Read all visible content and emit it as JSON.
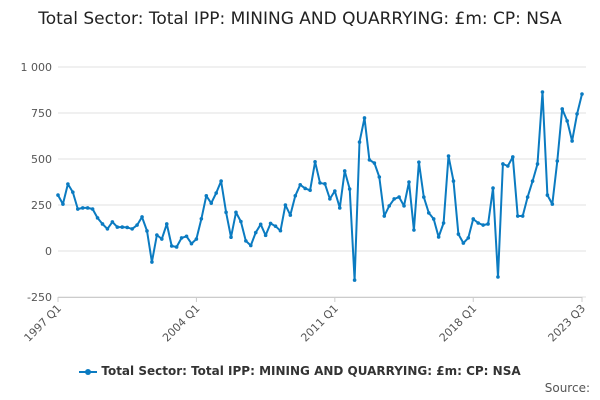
{
  "chart_data": {
    "type": "line",
    "title": "Total Sector: Total IPP: MINING AND QUARRYING: £m: CP: NSA",
    "xlabel": "",
    "ylabel": "",
    "ylim": [
      -250,
      1000
    ],
    "yticks": [
      -250,
      0,
      250,
      500,
      750,
      1000
    ],
    "ytick_labels": [
      "-250",
      "0",
      "250",
      "500",
      "750",
      "1 000"
    ],
    "xtick_labels": [
      "1997 Q1",
      "2004 Q1",
      "2011 Q1",
      "2018 Q1",
      "2023 Q3"
    ],
    "grid": true,
    "legend_position": "bottom",
    "color": "#0b7bc1",
    "categories": [
      "1997 Q1",
      "1997 Q2",
      "1997 Q3",
      "1997 Q4",
      "1998 Q1",
      "1998 Q2",
      "1998 Q3",
      "1998 Q4",
      "1999 Q1",
      "1999 Q2",
      "1999 Q3",
      "1999 Q4",
      "2000 Q1",
      "2000 Q2",
      "2000 Q3",
      "2000 Q4",
      "2001 Q1",
      "2001 Q2",
      "2001 Q3",
      "2001 Q4",
      "2002 Q1",
      "2002 Q2",
      "2002 Q3",
      "2002 Q4",
      "2003 Q1",
      "2003 Q2",
      "2003 Q3",
      "2003 Q4",
      "2004 Q1",
      "2004 Q2",
      "2004 Q3",
      "2004 Q4",
      "2005 Q1",
      "2005 Q2",
      "2005 Q3",
      "2005 Q4",
      "2006 Q1",
      "2006 Q2",
      "2006 Q3",
      "2006 Q4",
      "2007 Q1",
      "2007 Q2",
      "2007 Q3",
      "2007 Q4",
      "2008 Q1",
      "2008 Q2",
      "2008 Q3",
      "2008 Q4",
      "2009 Q1",
      "2009 Q2",
      "2009 Q3",
      "2009 Q4",
      "2010 Q1",
      "2010 Q2",
      "2010 Q3",
      "2010 Q4",
      "2011 Q1",
      "2011 Q2",
      "2011 Q3",
      "2011 Q4",
      "2012 Q1",
      "2012 Q2",
      "2012 Q3",
      "2012 Q4",
      "2013 Q1",
      "2013 Q2",
      "2013 Q3",
      "2013 Q4",
      "2014 Q1",
      "2014 Q2",
      "2014 Q3",
      "2014 Q4",
      "2015 Q1",
      "2015 Q2",
      "2015 Q3",
      "2015 Q4",
      "2016 Q1",
      "2016 Q2",
      "2016 Q3",
      "2016 Q4",
      "2017 Q1",
      "2017 Q2",
      "2017 Q3",
      "2017 Q4",
      "2018 Q1",
      "2018 Q2",
      "2018 Q3",
      "2018 Q4",
      "2019 Q1",
      "2019 Q2",
      "2019 Q3",
      "2019 Q4",
      "2020 Q1",
      "2020 Q2",
      "2020 Q3",
      "2020 Q4",
      "2021 Q1",
      "2021 Q2",
      "2021 Q3",
      "2021 Q4",
      "2022 Q1",
      "2022 Q2",
      "2022 Q3",
      "2022 Q4",
      "2023 Q1",
      "2023 Q2",
      "2023 Q3"
    ],
    "series": [
      {
        "name": "Total Sector: Total IPP: MINING AND QUARRYING: £m: CP: NSA",
        "values": [
          304,
          255,
          364,
          320,
          228,
          234,
          234,
          228,
          180,
          147,
          120,
          158,
          130,
          130,
          128,
          120,
          141,
          185,
          109,
          -60,
          87,
          65,
          147,
          27,
          22,
          71,
          80,
          40,
          65,
          175,
          300,
          260,
          315,
          380,
          210,
          75,
          210,
          160,
          55,
          30,
          100,
          145,
          85,
          150,
          135,
          110,
          250,
          195,
          300,
          360,
          340,
          330,
          485,
          370,
          365,
          283,
          326,
          234,
          435,
          337,
          -158,
          592,
          723,
          495,
          478,
          402,
          190,
          245,
          283,
          293,
          245,
          375,
          114,
          483,
          293,
          207,
          174,
          76,
          152,
          516,
          380,
          92,
          43,
          71,
          174,
          152,
          141,
          147,
          342,
          -141,
          473,
          462,
          511,
          190,
          190,
          293,
          380,
          473,
          864,
          304,
          255,
          489,
          772,
          707,
          598,
          745,
          853
        ]
      }
    ]
  },
  "source_label": "Source:"
}
